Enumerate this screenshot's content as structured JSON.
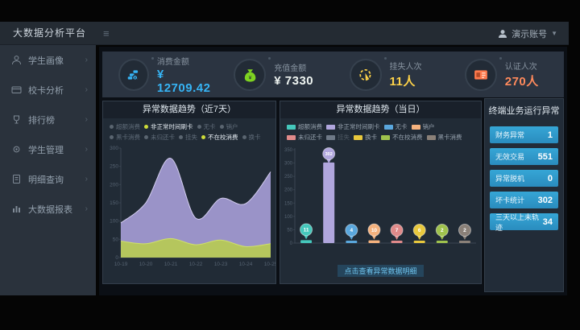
{
  "navbar": {
    "title": "大数据分析平台",
    "user": "演示账号"
  },
  "sidebar": {
    "items": [
      {
        "label": "学生画像",
        "icon": "student-icon"
      },
      {
        "label": "校卡分析",
        "icon": "card-icon"
      },
      {
        "label": "排行榜",
        "icon": "trophy-icon"
      },
      {
        "label": "学生管理",
        "icon": "gear-icon"
      },
      {
        "label": "明细查询",
        "icon": "doc-icon"
      },
      {
        "label": "大数据报表",
        "icon": "report-icon"
      }
    ]
  },
  "kpis": [
    {
      "label": "消费金额",
      "value": "¥ 12709.42",
      "color": "#36b4f5",
      "icon": "coins-icon"
    },
    {
      "label": "充值金额",
      "value": "¥ 7330",
      "color": "#edf3f0",
      "icon": "moneybag-icon"
    },
    {
      "label": "挂失人次",
      "value": "11人",
      "color": "#ffd349",
      "icon": "click-icon"
    },
    {
      "label": "认证人次",
      "value": "270人",
      "color": "#ff8a5c",
      "icon": "idcard-icon"
    }
  ],
  "panels": {
    "left": {
      "title": "异常数据趋势（近7天）"
    },
    "right": {
      "title": "异常数据趋势（当日）",
      "footer_link": "点击查看异常数据明细"
    },
    "terminal": {
      "title": "终端业务运行异常",
      "rows": [
        {
          "label": "财务异常",
          "value": "1"
        },
        {
          "label": "无效交易",
          "value": "551"
        },
        {
          "label": "异常脱机",
          "value": "0"
        },
        {
          "label": "坏卡统计",
          "value": "302"
        },
        {
          "label": "三天以上未轨迹",
          "value": "34"
        }
      ]
    }
  },
  "chart_data": [
    {
      "type": "area",
      "title": "异常数据趋势（近7天）",
      "x": [
        "10-19",
        "10-20",
        "10-21",
        "10-22",
        "10-23",
        "10-24",
        "10-25"
      ],
      "series": [
        {
          "name": "非正常时间刷卡",
          "color": "#a79fd8",
          "stroke": "#d3cdef",
          "values": [
            95,
            150,
            272,
            108,
            162,
            148,
            235
          ]
        },
        {
          "name": "不在校消费",
          "color": "#b8cc51",
          "stroke": "#cfe06a",
          "values": [
            45,
            38,
            52,
            35,
            48,
            30,
            38
          ]
        }
      ],
      "ylim": [
        0,
        300
      ],
      "ytick_step": 50,
      "grid": false,
      "legend_position": "top",
      "legend": [
        {
          "label": "超额消费",
          "selected": false
        },
        {
          "label": "非正常时间刷卡",
          "selected": true
        },
        {
          "label": "无卡",
          "selected": false
        },
        {
          "label": "销户",
          "selected": false
        },
        {
          "label": "黑卡消费",
          "selected": false
        },
        {
          "label": "未归还卡",
          "selected": false
        },
        {
          "label": "挂失",
          "selected": false
        },
        {
          "label": "不在校消费",
          "selected": true
        },
        {
          "label": "换卡",
          "selected": false
        }
      ]
    },
    {
      "type": "bar",
      "title": "异常数据趋势（当日）",
      "categories": [
        "超额消费",
        "非正常时间刷卡",
        "无卡",
        "销户",
        "未归还卡",
        "换卡",
        "不在校消费",
        "黑卡消费"
      ],
      "values": [
        11,
        302,
        4,
        10,
        7,
        6,
        2,
        2
      ],
      "colors": [
        "#45c8bc",
        "#b0a6dd",
        "#5aa7dd",
        "#f5b27e",
        "#e08a8a",
        "#e8c83d",
        "#9fc24d",
        "#8a8078"
      ],
      "ylim": [
        0,
        350
      ],
      "ytick_step": 50,
      "grid": false,
      "legend_position": "top",
      "legend": [
        {
          "label": "超额消费",
          "color": "#45c8bc",
          "dim": false
        },
        {
          "label": "非正常时间刷卡",
          "color": "#b0a6dd",
          "dim": false
        },
        {
          "label": "无卡",
          "color": "#5aa7dd",
          "dim": false
        },
        {
          "label": "销户",
          "color": "#f5b27e",
          "dim": false
        },
        {
          "label": "未归还卡",
          "color": "#e08a8a",
          "dim": false
        },
        {
          "label": "挂失",
          "color": "#6e7987",
          "dim": true
        },
        {
          "label": "换卡",
          "color": "#e8c83d",
          "dim": false
        },
        {
          "label": "不在校消费",
          "color": "#9fc24d",
          "dim": false
        },
        {
          "label": "黑卡消费",
          "color": "#8a8078",
          "dim": false
        }
      ]
    }
  ]
}
